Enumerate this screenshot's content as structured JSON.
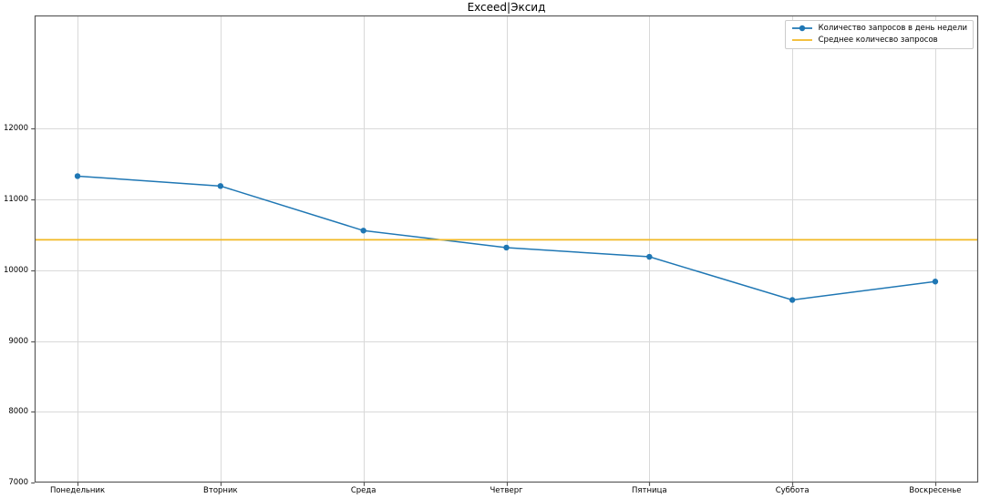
{
  "title": "Exceed|Эксид",
  "colors": {
    "series_line": "#1f77b4",
    "average_line": "#f2b824",
    "grid": "#d9d9d9",
    "spine": "#5a5a5a",
    "tick": "#5a5a5a",
    "text": "#000000",
    "legend_border": "#cccccc",
    "background": "#ffffff"
  },
  "chart_data": {
    "type": "line",
    "title": "Exceed|Эксид",
    "xlabel": "",
    "ylabel": "",
    "categories": [
      "Понедельник",
      "Вторник",
      "Среда",
      "Четверг",
      "Пятница",
      "Суббота",
      "Воскресенье"
    ],
    "series": [
      {
        "name": "Количество запросов в день недели",
        "kind": "line-markers",
        "color": "#1f77b4",
        "marker": "circle",
        "values": [
          11330,
          11190,
          10560,
          10320,
          10190,
          9580,
          9840
        ]
      },
      {
        "name": "Среднее количесво запросов",
        "kind": "hline",
        "color": "#f2b824",
        "value": 10430
      }
    ],
    "ylim": [
      7000,
      13600
    ],
    "xlim": [
      -0.3,
      6.3
    ],
    "yticks": [
      7000,
      8000,
      9000,
      10000,
      11000,
      12000
    ],
    "grid": true,
    "legend_position": "upper right"
  }
}
